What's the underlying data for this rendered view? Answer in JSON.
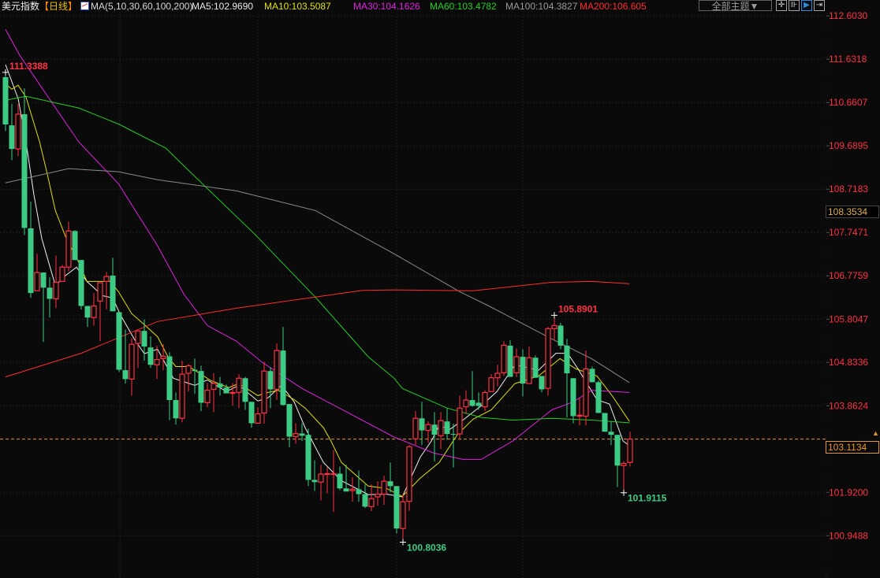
{
  "header": {
    "title": "美元指数",
    "period_open": "【",
    "period": "日线",
    "period_close": "】",
    "ma_icon": "indicator-chart-icon",
    "ma_set": "MA(5,10,30,60,100,200)",
    "ma5": "MA5:102.9690",
    "ma10": "MA10:103.5087",
    "ma30": "MA30:104.1626",
    "ma60": "MA60:103.4782",
    "ma100": "MA100:104.3827",
    "ma200": "MA200:106.605"
  },
  "toolbar": {
    "theme_label": "全部主题▼",
    "buttons": [
      {
        "icon": "crosshair-icon",
        "glyph": "✛"
      },
      {
        "icon": "interval-icon",
        "glyph": "⊪"
      },
      {
        "icon": "play-range-icon",
        "glyph": "▶",
        "selected": true
      },
      {
        "icon": "move-right-icon",
        "glyph": "⇥"
      }
    ]
  },
  "price_labels": {
    "current": "103.1134",
    "crosshair": "108.3534"
  },
  "chart_data": {
    "type": "candlestick",
    "title": "美元指数",
    "ylim": [
      100.0,
      112.66
    ],
    "grid": true,
    "colors": {
      "up": "#ff3042",
      "down": "#3dcc85",
      "background": "#0a0a0a",
      "axis_text": "#ff3042",
      "current_line": "#e8952c"
    },
    "y_ticks": [
      "112.6030",
      "111.6318",
      "110.6607",
      "109.6895",
      "108.7183",
      "107.7471",
      "106.7759",
      "105.8047",
      "104.8336",
      "103.8624",
      "101.9200",
      "100.9488"
    ],
    "ohlc": [
      [
        111.23,
        111.3388,
        110.02,
        110.17
      ],
      [
        110.15,
        110.63,
        109.37,
        109.62
      ],
      [
        109.62,
        110.63,
        109.46,
        110.4
      ],
      [
        110.4,
        110.98,
        107.69,
        107.85
      ],
      [
        107.84,
        108.44,
        106.28,
        106.39
      ],
      [
        106.44,
        107.27,
        106.44,
        106.85
      ],
      [
        106.85,
        106.85,
        105.29,
        106.51
      ],
      [
        106.51,
        106.74,
        105.84,
        106.26
      ],
      [
        106.26,
        107.23,
        106.05,
        106.63
      ],
      [
        106.65,
        107.02,
        106.65,
        106.97
      ],
      [
        106.97,
        107.99,
        106.88,
        107.78
      ],
      [
        107.78,
        107.8,
        107.13,
        107.13
      ],
      [
        107.13,
        107.13,
        106.02,
        106.1
      ],
      [
        106.1,
        106.1,
        105.63,
        105.84
      ],
      [
        105.84,
        106.39,
        105.66,
        106.1
      ],
      [
        106.21,
        106.62,
        105.31,
        106.62
      ],
      [
        106.65,
        106.86,
        106.03,
        106.76
      ],
      [
        106.78,
        107.18,
        105.98,
        105.98
      ],
      [
        105.96,
        105.96,
        104.62,
        104.67
      ],
      [
        104.66,
        105.57,
        104.36,
        104.46
      ],
      [
        104.46,
        105.38,
        104.09,
        105.24
      ],
      [
        105.26,
        105.54,
        104.71,
        105.54
      ],
      [
        105.54,
        105.8,
        104.87,
        105.19
      ],
      [
        105.17,
        105.42,
        104.71,
        104.78
      ],
      [
        104.78,
        105.21,
        104.46,
        104.9
      ],
      [
        104.92,
        105.24,
        104.66,
        104.97
      ],
      [
        104.97,
        105.06,
        103.54,
        103.99
      ],
      [
        103.99,
        104.16,
        103.44,
        103.58
      ],
      [
        103.58,
        104.87,
        103.49,
        104.57
      ],
      [
        104.59,
        104.8,
        104.18,
        104.76
      ],
      [
        104.67,
        104.92,
        104.13,
        104.64
      ],
      [
        104.64,
        104.76,
        103.74,
        103.93
      ],
      [
        103.93,
        104.37,
        103.83,
        104.21
      ],
      [
        104.23,
        104.59,
        103.72,
        104.36
      ],
      [
        104.36,
        104.51,
        104.09,
        104.27
      ],
      [
        104.27,
        104.34,
        104.14,
        104.14
      ],
      [
        104.14,
        104.37,
        103.86,
        104.16
      ],
      [
        104.16,
        104.57,
        103.81,
        104.48
      ],
      [
        104.48,
        104.51,
        103.77,
        103.95
      ],
      [
        103.95,
        103.95,
        103.37,
        103.47
      ],
      [
        103.47,
        103.83,
        103.47,
        103.68
      ],
      [
        103.7,
        104.85,
        103.46,
        104.64
      ],
      [
        104.64,
        104.73,
        103.81,
        104.23
      ],
      [
        104.23,
        105.26,
        103.99,
        105.1
      ],
      [
        105.1,
        105.63,
        103.86,
        103.88
      ],
      [
        103.9,
        103.9,
        102.93,
        103.17
      ],
      [
        103.17,
        103.47,
        103.01,
        103.24
      ],
      [
        103.24,
        103.47,
        103.07,
        103.19
      ],
      [
        103.21,
        103.35,
        102.06,
        102.2
      ],
      [
        102.2,
        102.64,
        101.95,
        102.15
      ],
      [
        102.15,
        102.54,
        101.74,
        102.33
      ],
      [
        102.33,
        102.48,
        101.9,
        102.34
      ],
      [
        102.33,
        102.87,
        101.48,
        102.34
      ],
      [
        102.34,
        102.5,
        101.97,
        102.01
      ],
      [
        102.01,
        102.54,
        101.94,
        101.94
      ],
      [
        101.96,
        102.26,
        101.71,
        101.99
      ],
      [
        101.99,
        102.41,
        101.71,
        101.88
      ],
      [
        101.88,
        102.1,
        101.57,
        101.6
      ],
      [
        101.6,
        102.1,
        101.5,
        101.78
      ],
      [
        101.82,
        102.17,
        101.62,
        101.88
      ],
      [
        101.88,
        102.29,
        101.64,
        102.17
      ],
      [
        102.17,
        102.59,
        101.92,
        102.06
      ],
      [
        102.06,
        102.06,
        101.0,
        101.11
      ],
      [
        101.11,
        101.88,
        100.8036,
        101.71
      ],
      [
        101.72,
        102.98,
        101.51,
        102.94
      ],
      [
        103.12,
        103.74,
        102.98,
        103.58
      ],
      [
        103.58,
        103.95,
        102.98,
        103.31
      ],
      [
        103.31,
        103.51,
        103.03,
        103.44
      ],
      [
        103.44,
        103.72,
        102.61,
        103.21
      ],
      [
        103.19,
        103.72,
        102.89,
        103.53
      ],
      [
        103.51,
        103.81,
        103.1,
        103.23
      ],
      [
        103.23,
        103.46,
        102.48,
        103.23
      ],
      [
        103.23,
        104.09,
        103.12,
        103.81
      ],
      [
        103.84,
        104.21,
        103.68,
        103.99
      ],
      [
        103.99,
        104.64,
        103.84,
        103.86
      ],
      [
        103.93,
        104.16,
        103.77,
        103.86
      ],
      [
        103.84,
        104.21,
        103.74,
        104.16
      ],
      [
        104.18,
        104.57,
        104.18,
        104.49
      ],
      [
        104.49,
        104.78,
        104.3,
        104.59
      ],
      [
        104.6,
        105.31,
        104.53,
        105.22
      ],
      [
        105.21,
        105.33,
        104.51,
        104.51
      ],
      [
        104.6,
        105.15,
        104.51,
        104.96
      ],
      [
        104.96,
        105.13,
        104.07,
        104.36
      ],
      [
        104.36,
        105.19,
        104.36,
        104.94
      ],
      [
        104.94,
        104.99,
        104.49,
        104.49
      ],
      [
        104.53,
        104.53,
        104.16,
        104.23
      ],
      [
        104.25,
        105.63,
        104.09,
        105.59
      ],
      [
        105.59,
        105.8901,
        105.33,
        105.66
      ],
      [
        105.66,
        105.72,
        105.13,
        105.21
      ],
      [
        105.21,
        105.36,
        103.6,
        104.59
      ],
      [
        104.48,
        104.48,
        103.47,
        103.63
      ],
      [
        103.63,
        104.04,
        103.42,
        103.65
      ],
      [
        103.63,
        105.1,
        103.42,
        104.69
      ],
      [
        104.69,
        104.74,
        104.39,
        104.39
      ],
      [
        104.39,
        104.43,
        103.7,
        103.7
      ],
      [
        103.7,
        103.7,
        103.28,
        103.28
      ],
      [
        103.28,
        103.51,
        102.98,
        103.21
      ],
      [
        103.21,
        103.21,
        102.04,
        102.52
      ],
      [
        102.52,
        102.62,
        101.9115,
        102.57
      ],
      [
        102.59,
        103.28,
        102.5,
        103.1134
      ]
    ],
    "moving_averages": [
      {
        "name": "MA5",
        "color": "#f0f0f0",
        "points": [
          [
            0,
            111.51
          ],
          [
            2,
            110.75
          ],
          [
            3.25,
            109.78
          ],
          [
            4.5,
            108.59
          ],
          [
            5.75,
            107.61
          ],
          [
            7.9,
            106.56
          ],
          [
            9.5,
            106.78
          ],
          [
            11.25,
            106.97
          ],
          [
            12.9,
            106.65
          ],
          [
            15.4,
            106.33
          ],
          [
            17,
            106.28
          ],
          [
            18.25,
            105.89
          ],
          [
            20.4,
            105.36
          ],
          [
            22,
            105.03
          ],
          [
            24.1,
            105.13
          ],
          [
            26.6,
            104.48
          ],
          [
            30,
            104.32
          ],
          [
            32,
            104.44
          ],
          [
            35,
            104.18
          ],
          [
            37,
            104.32
          ],
          [
            40,
            103.97
          ],
          [
            41.6,
            104.04
          ],
          [
            43.75,
            104.32
          ],
          [
            45.75,
            103.95
          ],
          [
            47.5,
            103.37
          ],
          [
            50.4,
            102.59
          ],
          [
            53.25,
            102.18
          ],
          [
            57.5,
            101.87
          ],
          [
            60.4,
            101.88
          ],
          [
            62.9,
            101.82
          ],
          [
            65.75,
            102.71
          ],
          [
            67.5,
            103.07
          ],
          [
            68.75,
            103.42
          ],
          [
            70.4,
            103.33
          ],
          [
            72.5,
            103.54
          ],
          [
            75.4,
            103.86
          ],
          [
            77.9,
            104.18
          ],
          [
            80.75,
            104.78
          ],
          [
            84.5,
            104.66
          ],
          [
            87.25,
            105.04
          ],
          [
            89.1,
            105.04
          ],
          [
            90.75,
            104.69
          ],
          [
            93.75,
            104.0
          ],
          [
            95.75,
            103.9
          ],
          [
            97.9,
            103.07
          ],
          [
            98.9,
            102.97
          ]
        ]
      },
      {
        "name": "MA10",
        "color": "#e0e000",
        "points": [
          [
            0,
            111.08
          ],
          [
            1,
            110.96
          ],
          [
            2,
            111.05
          ],
          [
            3.25,
            110.78
          ],
          [
            5.4,
            109.78
          ],
          [
            6.6,
            109.07
          ],
          [
            7.9,
            108.24
          ],
          [
            9.5,
            107.66
          ],
          [
            11.6,
            107.08
          ],
          [
            12.9,
            106.65
          ],
          [
            16.6,
            106.65
          ],
          [
            17.9,
            106.42
          ],
          [
            20,
            105.93
          ],
          [
            22,
            105.68
          ],
          [
            24.1,
            105.41
          ],
          [
            25.75,
            104.96
          ],
          [
            27,
            104.74
          ],
          [
            29.1,
            104.74
          ],
          [
            32.5,
            104.43
          ],
          [
            35.4,
            104.27
          ],
          [
            37,
            104.36
          ],
          [
            40,
            104.09
          ],
          [
            41.6,
            104.16
          ],
          [
            43.25,
            104.21
          ],
          [
            45.75,
            104.0
          ],
          [
            47.5,
            103.81
          ],
          [
            50.4,
            103.37
          ],
          [
            51.6,
            103.07
          ],
          [
            53.25,
            102.59
          ],
          [
            57.5,
            102.06
          ],
          [
            60.4,
            102.01
          ],
          [
            62.9,
            101.83
          ],
          [
            65.75,
            102.24
          ],
          [
            68.75,
            102.59
          ],
          [
            71.6,
            103.21
          ],
          [
            74.1,
            103.56
          ],
          [
            77,
            103.77
          ],
          [
            80.75,
            104.36
          ],
          [
            84.5,
            104.53
          ],
          [
            87.9,
            104.92
          ],
          [
            90.4,
            104.69
          ],
          [
            93.75,
            104.53
          ],
          [
            96.25,
            104.07
          ],
          [
            98.9,
            103.51
          ]
        ]
      },
      {
        "name": "MA30",
        "color": "#e020e0",
        "points": [
          [
            0,
            112.3
          ],
          [
            2.25,
            111.72
          ],
          [
            11.6,
            109.78
          ],
          [
            17.9,
            108.84
          ],
          [
            24.1,
            107.45
          ],
          [
            28.25,
            106.37
          ],
          [
            32,
            105.66
          ],
          [
            36.6,
            105.31
          ],
          [
            40.75,
            104.83
          ],
          [
            47,
            104.25
          ],
          [
            52.9,
            103.81
          ],
          [
            61.6,
            103.16
          ],
          [
            67.9,
            102.8
          ],
          [
            72.5,
            102.66
          ],
          [
            75.4,
            102.66
          ],
          [
            80.4,
            103.07
          ],
          [
            86.6,
            103.77
          ],
          [
            90,
            103.95
          ],
          [
            92.9,
            104.21
          ],
          [
            98.9,
            104.16
          ]
        ]
      },
      {
        "name": "MA60",
        "color": "#20d020",
        "points": [
          [
            0,
            110.71
          ],
          [
            3.25,
            110.8
          ],
          [
            11.6,
            110.54
          ],
          [
            17.9,
            110.18
          ],
          [
            25.4,
            109.64
          ],
          [
            30.4,
            108.95
          ],
          [
            39.5,
            107.71
          ],
          [
            49.1,
            106.3
          ],
          [
            57.5,
            104.96
          ],
          [
            61.6,
            104.48
          ],
          [
            62.9,
            104.25
          ],
          [
            70,
            103.81
          ],
          [
            75.4,
            103.6
          ],
          [
            80.4,
            103.54
          ],
          [
            86.6,
            103.58
          ],
          [
            92.9,
            103.54
          ],
          [
            98.9,
            103.48
          ]
        ]
      },
      {
        "name": "MA100",
        "color": "#8a8a8a",
        "points": [
          [
            0,
            108.86
          ],
          [
            10,
            109.18
          ],
          [
            17.9,
            109.11
          ],
          [
            24.1,
            108.93
          ],
          [
            36.6,
            108.68
          ],
          [
            49.1,
            108.24
          ],
          [
            61.6,
            107.27
          ],
          [
            72,
            106.42
          ],
          [
            76.6,
            106.1
          ],
          [
            86.6,
            105.36
          ],
          [
            92.9,
            104.92
          ],
          [
            98.9,
            104.38
          ]
        ]
      },
      {
        "name": "MA200",
        "color": "#ff2c2c",
        "points": [
          [
            0,
            104.51
          ],
          [
            12,
            105.04
          ],
          [
            24.1,
            105.75
          ],
          [
            36.6,
            106.05
          ],
          [
            49.1,
            106.3
          ],
          [
            56.6,
            106.45
          ],
          [
            61.6,
            106.46
          ],
          [
            74.1,
            106.44
          ],
          [
            86.6,
            106.63
          ],
          [
            92.9,
            106.65
          ],
          [
            98.9,
            106.6
          ]
        ]
      }
    ],
    "annotations": [
      {
        "text": "111.3388",
        "index": 0,
        "price": 111.3388,
        "kind": "high",
        "color": "#ff3042"
      },
      {
        "text": "105.8901",
        "index": 87,
        "price": 105.8901,
        "kind": "high",
        "color": "#ff3042"
      },
      {
        "text": "100.8036",
        "index": 63,
        "price": 100.8036,
        "kind": "low",
        "color": "#3dcc85"
      },
      {
        "text": "101.9115",
        "index": 98,
        "price": 101.9115,
        "kind": "low",
        "color": "#3dcc85"
      }
    ],
    "current_price": 103.1134
  }
}
